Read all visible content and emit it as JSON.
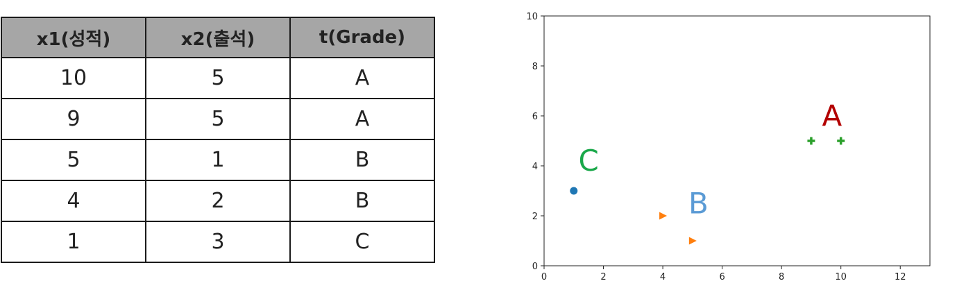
{
  "table": {
    "headers": [
      "x1(성적)",
      "x2(출석)",
      "t(Grade)"
    ],
    "rows": [
      [
        "10",
        "5",
        "A"
      ],
      [
        "9",
        "5",
        "A"
      ],
      [
        "5",
        "1",
        "B"
      ],
      [
        "4",
        "2",
        "B"
      ],
      [
        "1",
        "3",
        "C"
      ]
    ]
  },
  "chart_data": {
    "type": "scatter",
    "xlim": [
      0,
      13
    ],
    "ylim": [
      0,
      10
    ],
    "x_ticks": [
      0,
      2,
      4,
      6,
      8,
      10,
      12
    ],
    "y_ticks": [
      0,
      2,
      4,
      6,
      8,
      10
    ],
    "grid": false,
    "series": [
      {
        "label": "C",
        "marker": "circle",
        "color": "#1f77b4",
        "points": [
          [
            1,
            3
          ]
        ]
      },
      {
        "label": "B",
        "marker": "triangle-right",
        "color": "#ff7f0e",
        "points": [
          [
            4,
            2
          ],
          [
            5,
            1
          ]
        ]
      },
      {
        "label": "A",
        "marker": "plus",
        "color": "#2ca02c",
        "points": [
          [
            9,
            5
          ],
          [
            10,
            5
          ]
        ]
      }
    ],
    "annotations": [
      {
        "text": "A",
        "x": 9.7,
        "y": 5.6,
        "color": "#b30000"
      },
      {
        "text": "B",
        "x": 5.2,
        "y": 2.1,
        "color": "#5b9bd5"
      },
      {
        "text": "C",
        "x": 1.5,
        "y": 3.8,
        "color": "#1aa84a"
      }
    ]
  }
}
